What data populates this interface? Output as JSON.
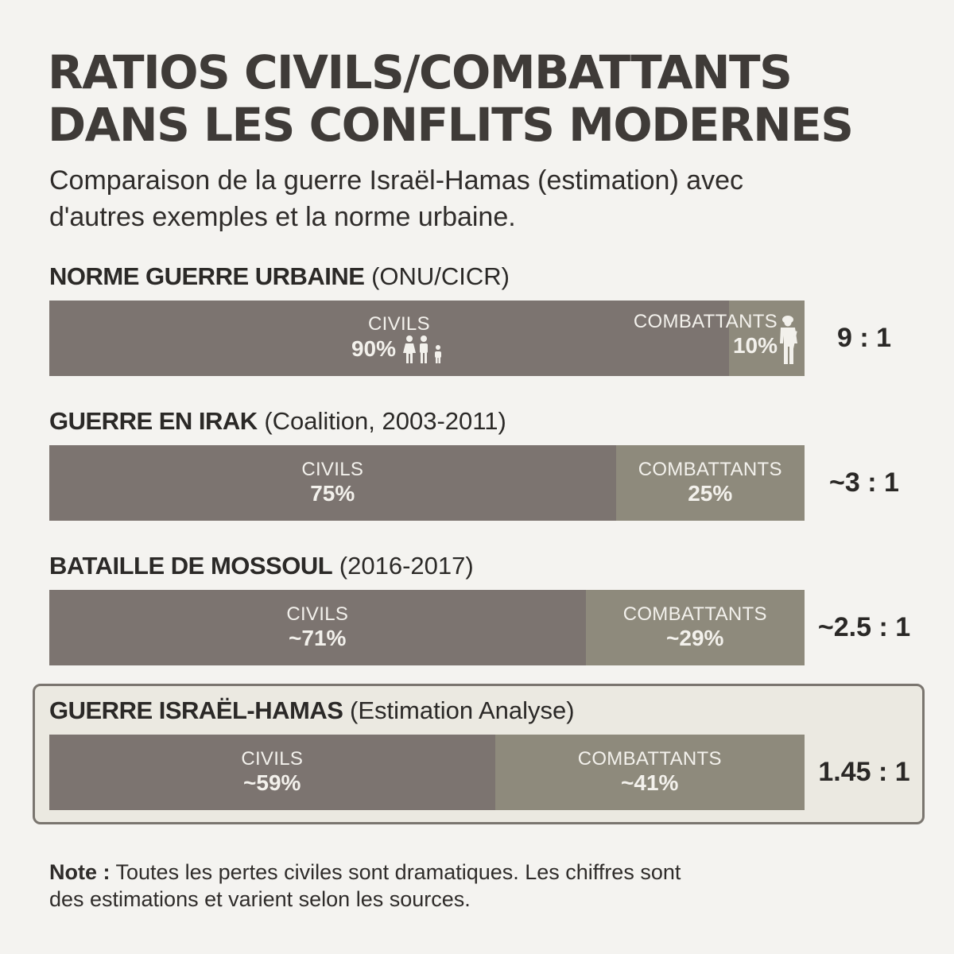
{
  "title_line1": "RATIOS CIVILS/COMBATTANTS",
  "title_line2": "DANS LES CONFLITS MODERNES",
  "subtitle_line1": "Comparaison de la guerre Israël-Hamas (estimation) avec",
  "subtitle_line2": "d'autres exemples et la norme urbaine.",
  "colors": {
    "civils": "#7c7470",
    "combattants": "#8e8a7c",
    "highlight_border": "#7a756f"
  },
  "chart_data": {
    "type": "bar",
    "stacked": true,
    "orientation": "horizontal",
    "categories": [
      "NORME GUERRE URBAINE (ONU/CICR)",
      "GUERRE EN IRAK (Coalition, 2003-2011)",
      "BATAILLE DE MOSSOUL (2016-2017)",
      "GUERRE ISRAËL-HAMAS (Estimation Analyse)"
    ],
    "series": [
      {
        "name": "CIVILS",
        "values": [
          90,
          75,
          71,
          59
        ]
      },
      {
        "name": "COMBATTANTS",
        "values": [
          10,
          25,
          29,
          41
        ]
      }
    ],
    "xlim": [
      0,
      100
    ],
    "rows": [
      {
        "name": "NORME GUERRE URBAINE",
        "detail": "(ONU/CICR)",
        "civils": 90,
        "civils_label": "90%",
        "combattants": 10,
        "combattants_label": "10%",
        "ratio": "9 : 1",
        "icons": true,
        "highlighted": false
      },
      {
        "name": "GUERRE EN IRAK",
        "detail": "(Coalition, 2003-2011)",
        "civils": 75,
        "civils_label": "75%",
        "combattants": 25,
        "combattants_label": "25%",
        "ratio": "~3 : 1",
        "icons": false,
        "highlighted": false
      },
      {
        "name": "BATAILLE DE MOSSOUL",
        "detail": "(2016-2017)",
        "civils": 71,
        "civils_label": "~71%",
        "combattants": 29,
        "combattants_label": "~29%",
        "ratio": "~2.5 : 1",
        "icons": false,
        "highlighted": false
      },
      {
        "name": "GUERRE ISRAËL-HAMAS",
        "detail": "(Estimation Analyse)",
        "civils": 59,
        "civils_label": "~59%",
        "combattants": 41,
        "combattants_label": "~41%",
        "ratio": "1.45 : 1",
        "icons": false,
        "highlighted": true
      }
    ],
    "segment_labels": {
      "civils": "CIVILS",
      "combattants": "COMBATTANTS"
    }
  },
  "note_label": "Note :",
  "note_line1": "Toutes les pertes civiles sont dramatiques. Les chiffres sont",
  "note_line2": "des estimations et varient selon les sources."
}
